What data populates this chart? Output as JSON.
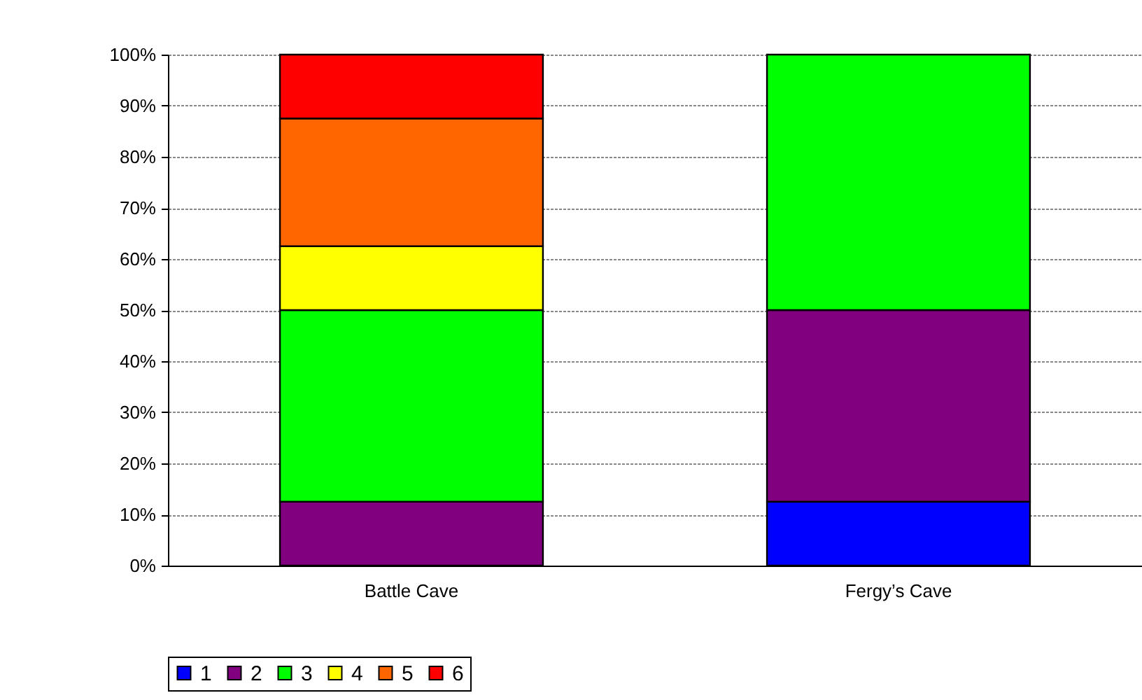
{
  "chart_data": {
    "type": "bar",
    "stacked": true,
    "categories": [
      "Battle Cave",
      "Fergy’s Cave"
    ],
    "series": [
      {
        "name": "1",
        "color": "#0000ff",
        "values": [
          0,
          12.5
        ]
      },
      {
        "name": "2",
        "color": "#800080",
        "values": [
          12.5,
          37.5
        ]
      },
      {
        "name": "3",
        "color": "#00ff00",
        "values": [
          37.5,
          50
        ]
      },
      {
        "name": "4",
        "color": "#ffff00",
        "values": [
          12.5,
          0
        ]
      },
      {
        "name": "5",
        "color": "#ff6600",
        "values": [
          25,
          0
        ]
      },
      {
        "name": "6",
        "color": "#ff0000",
        "values": [
          12.5,
          0
        ]
      }
    ],
    "ylim": [
      0,
      100
    ],
    "yticks": [
      {
        "value": 0,
        "label": "0%"
      },
      {
        "value": 10,
        "label": "10%"
      },
      {
        "value": 20,
        "label": "20%"
      },
      {
        "value": 30,
        "label": "30%"
      },
      {
        "value": 40,
        "label": "40%"
      },
      {
        "value": 50,
        "label": "50%"
      },
      {
        "value": 60,
        "label": "60%"
      },
      {
        "value": 70,
        "label": "70%"
      },
      {
        "value": 80,
        "label": "80%"
      },
      {
        "value": 90,
        "label": "90%"
      },
      {
        "value": 100,
        "label": "100%"
      }
    ],
    "grid": "y",
    "legend": "bottom"
  }
}
